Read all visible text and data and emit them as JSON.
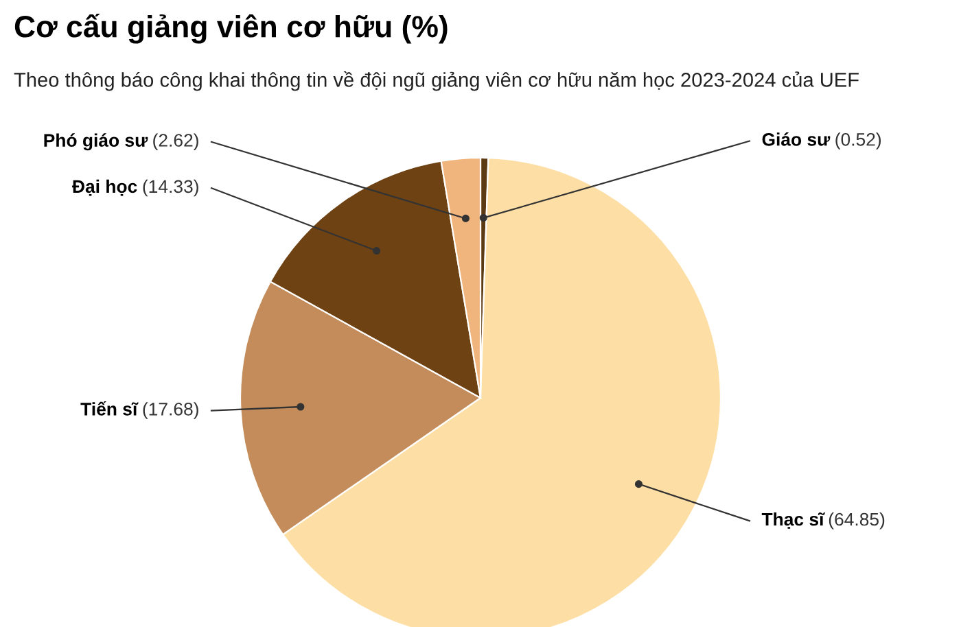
{
  "chart_data": {
    "type": "pie",
    "title": "Cơ cấu giảng viên cơ hữu (%)",
    "subtitle": "Theo thông báo công khai thông tin về đội ngũ giảng viên cơ hữu năm học 2023-2024 của UEF",
    "categories": [
      "Giáo sư",
      "Thạc sĩ",
      "Tiến sĩ",
      "Đại học",
      "Phó giáo sư"
    ],
    "values": [
      0.52,
      64.85,
      17.68,
      14.33,
      2.62
    ],
    "colors": [
      "#5c3a14",
      "#fddfa6",
      "#c48c5a",
      "#6e4213",
      "#f0b47d"
    ],
    "value_labels": [
      "(0.52)",
      "(64.85)",
      "(17.68)",
      "(14.33)",
      "(2.62)"
    ]
  }
}
